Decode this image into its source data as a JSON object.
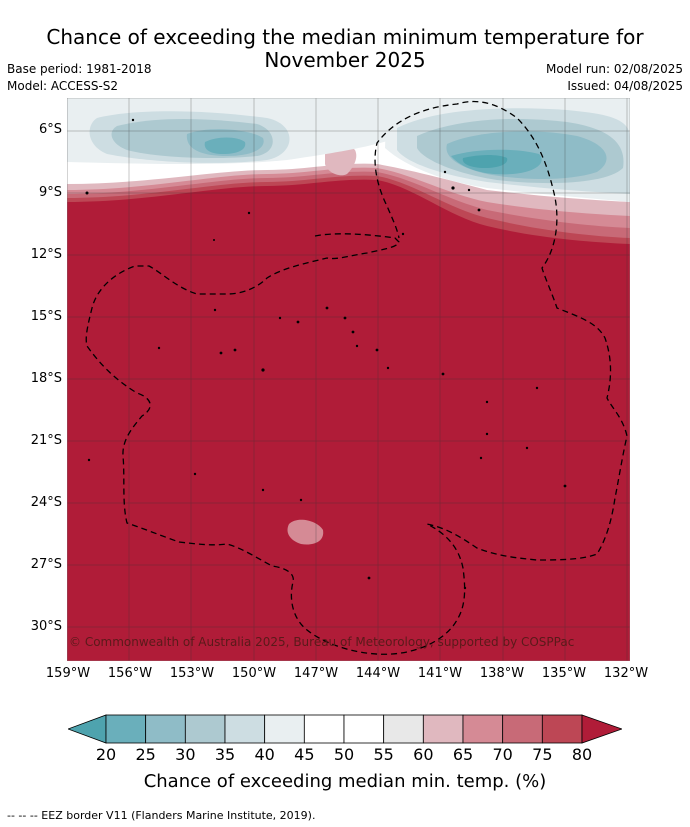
{
  "title_line1": "Chance of exceeding the median minimum temperature for",
  "title_line2": "November 2025",
  "base_period": "Base period: 1981-2018",
  "model": "Model: ACCESS-S2",
  "model_run": "Model run: 02/08/2025",
  "issued": "Issued: 04/08/2025",
  "copyright": "© Commonwealth of Australia 2025, Bureau of Meteorology, supported by COSPPac",
  "lat_labels": [
    "6°S",
    "9°S",
    "12°S",
    "15°S",
    "18°S",
    "21°S",
    "24°S",
    "27°S",
    "30°S"
  ],
  "lon_labels": [
    "159°W",
    "156°W",
    "153°W",
    "150°W",
    "147°W",
    "144°W",
    "141°W",
    "138°W",
    "135°W",
    "132°W"
  ],
  "colorbar": {
    "ticks": [
      "20",
      "25",
      "30",
      "35",
      "40",
      "45",
      "50",
      "55",
      "60",
      "65",
      "70",
      "75",
      "80"
    ],
    "colors": [
      "#4ea3ae",
      "#6aafbb",
      "#8fbcc7",
      "#adc9d0",
      "#cddde2",
      "#e9eff1",
      "#ffffff",
      "#ffffff",
      "#e8e8e8",
      "#e0b8bf",
      "#d58a95",
      "#c86a77",
      "#bd4755",
      "#b01c38"
    ],
    "label": "Chance of exceeding median min. temp. (%)"
  },
  "footer": "--  --  -- EEZ border V11 (Flanders Marine Institute, 2019)."
}
